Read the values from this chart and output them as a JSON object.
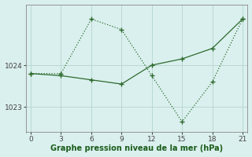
{
  "line1_x": [
    0,
    3,
    6,
    9,
    12,
    15,
    18,
    21
  ],
  "line1_y": [
    1023.8,
    1023.8,
    1025.1,
    1024.85,
    1023.75,
    1022.65,
    1023.6,
    1025.1
  ],
  "line2_x": [
    0,
    3,
    6,
    9,
    12,
    15,
    18,
    21
  ],
  "line2_y": [
    1023.8,
    1023.75,
    1023.65,
    1023.55,
    1024.0,
    1024.15,
    1024.4,
    1025.1
  ],
  "line_color": "#2d6a2d",
  "bg_color": "#daf0ee",
  "grid_color": "#b8d8d4",
  "xlabel": "Graphe pression niveau de la mer (hPa)",
  "xlabel_color": "#1a5c1a",
  "tick_color": "#444444",
  "xlim": [
    -0.5,
    21.5
  ],
  "ylim": [
    1022.4,
    1025.45
  ],
  "yticks": [
    1023,
    1024
  ],
  "xticks": [
    0,
    3,
    6,
    9,
    12,
    15,
    18,
    21
  ]
}
